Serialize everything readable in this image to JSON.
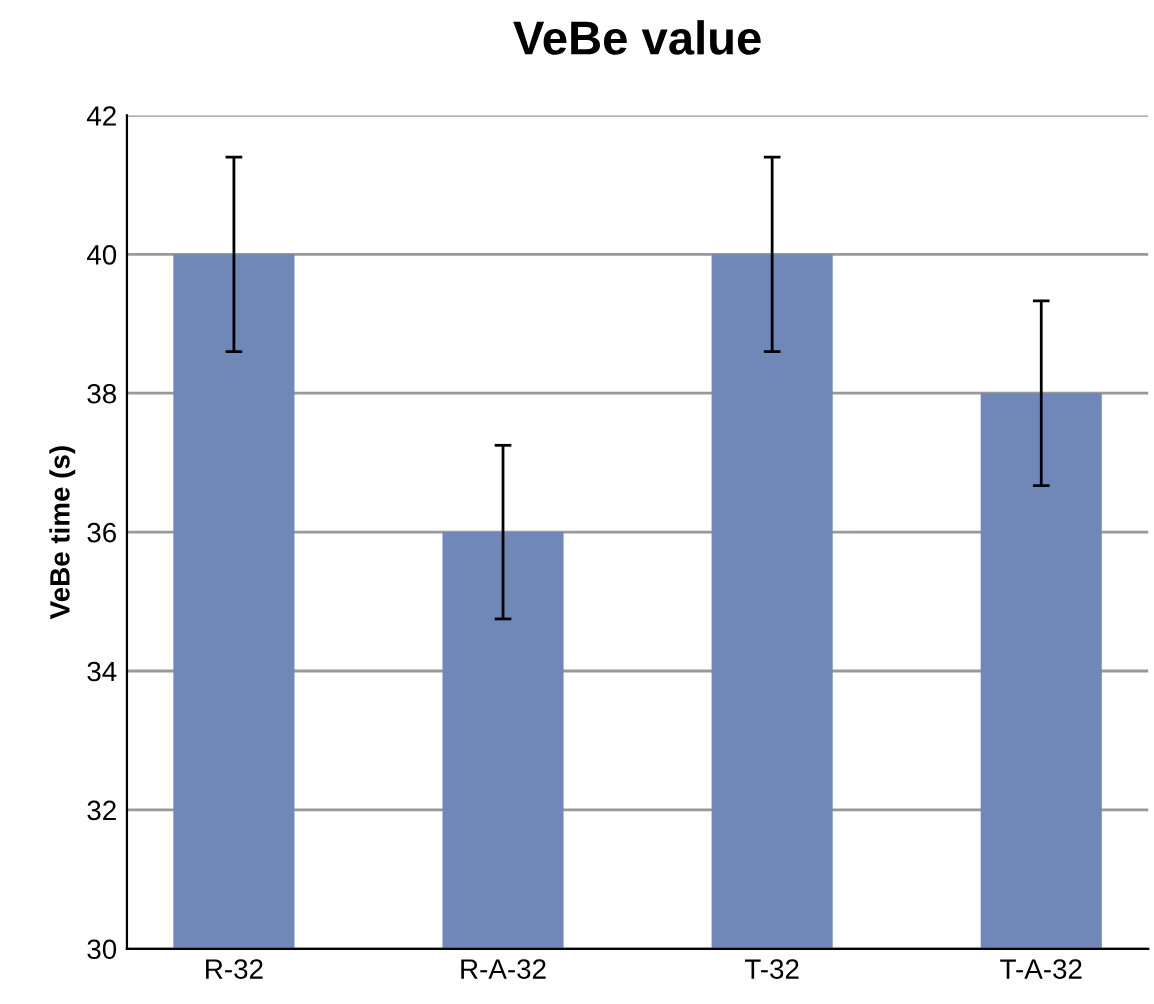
{
  "chart_data": {
    "type": "bar",
    "title": "VeBe value",
    "ylabel": "VeBe time (s)",
    "categories": [
      "R-32",
      "R-A-32",
      "T-32",
      "T-A-32"
    ],
    "values": [
      40,
      36,
      40,
      38
    ],
    "errors": [
      1.4,
      1.25,
      1.4,
      1.33
    ],
    "color": "#6f88b8",
    "ylim": [
      30,
      42
    ],
    "yticks": [
      30,
      32,
      34,
      36,
      38,
      40,
      42
    ],
    "grid": "y"
  }
}
